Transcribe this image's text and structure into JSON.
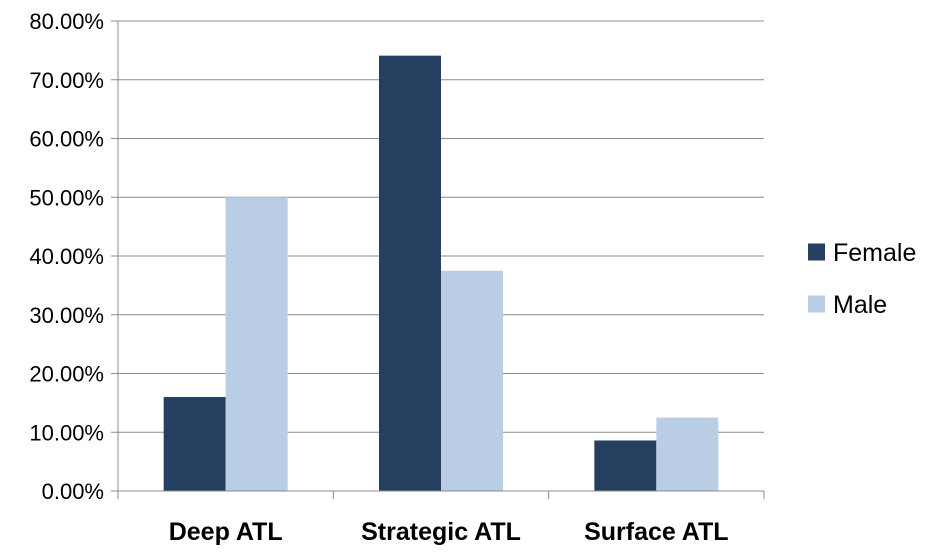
{
  "chart_data": {
    "type": "bar",
    "categories": [
      "Deep ATL",
      "Strategic ATL",
      "Surface ATL"
    ],
    "series": [
      {
        "name": "Female",
        "color": "#243f60",
        "values": [
          16.0,
          74.1,
          8.6
        ]
      },
      {
        "name": "Male",
        "color": "#b9cde5",
        "values": [
          50.0,
          37.5,
          12.5
        ]
      }
    ],
    "y_ticks": [
      "0.00%",
      "10.00%",
      "20.00%",
      "30.00%",
      "40.00%",
      "50.00%",
      "60.00%",
      "70.00%",
      "80.00%"
    ],
    "ylim": [
      0,
      80
    ],
    "y_unit": "percent",
    "grid": true,
    "legend_position": "right"
  }
}
